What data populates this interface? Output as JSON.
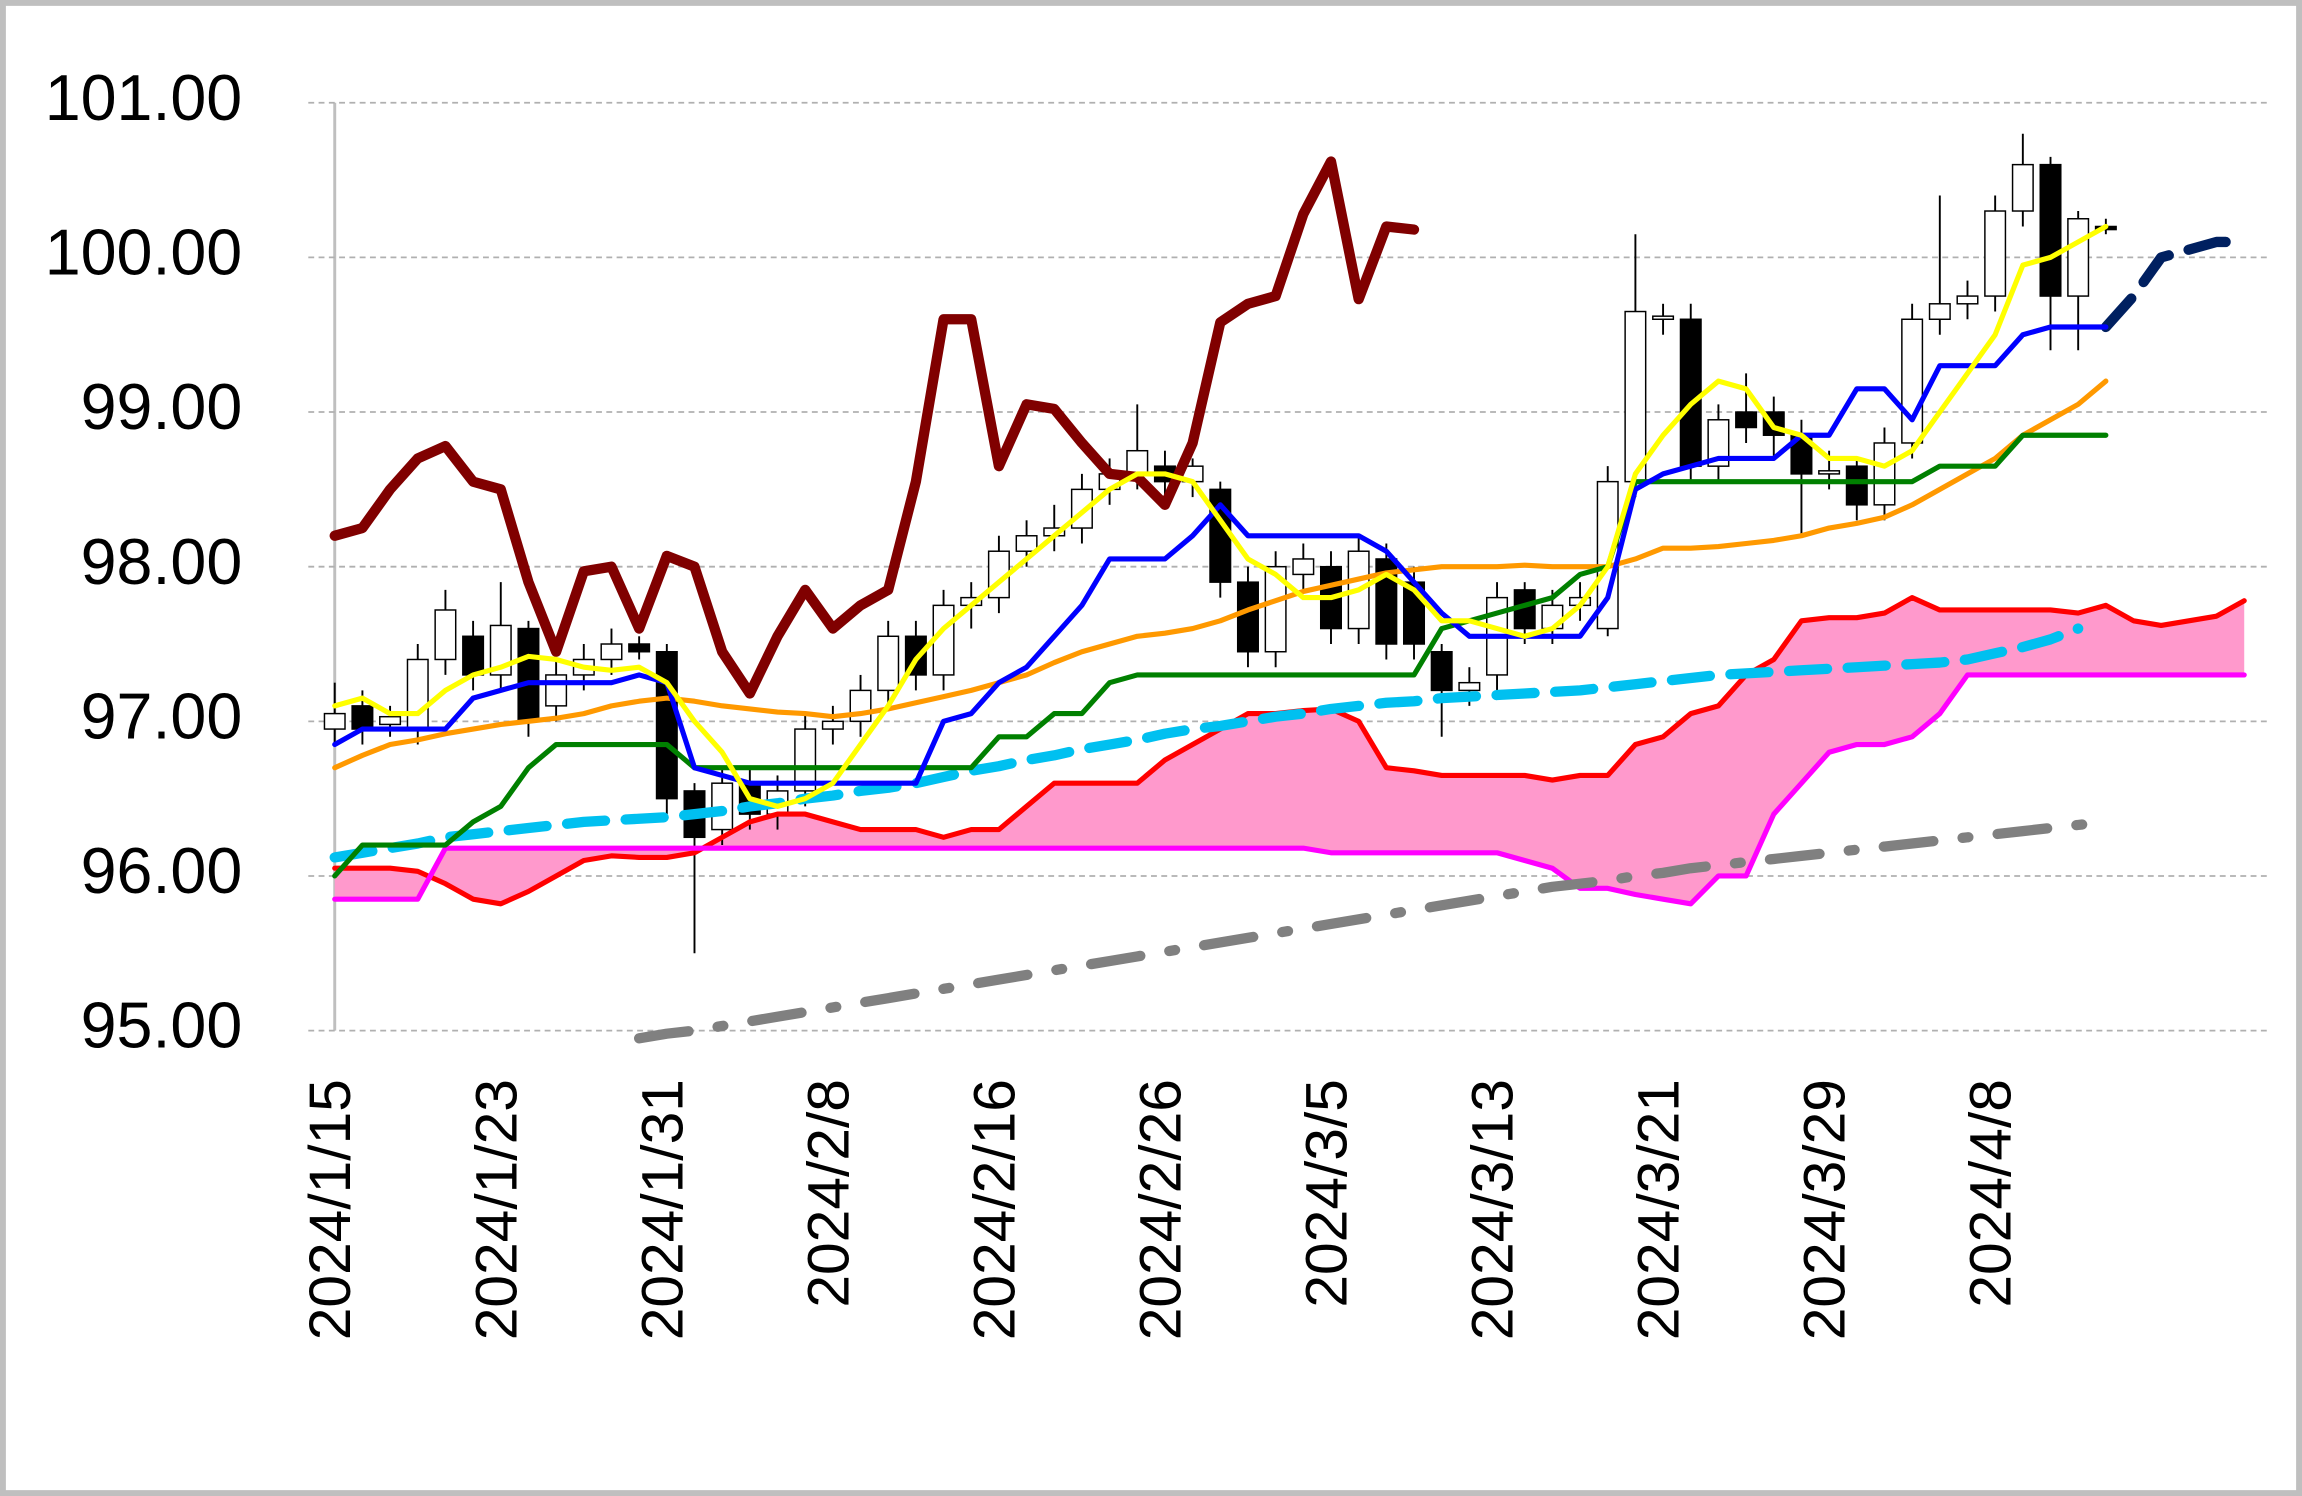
{
  "chart_data": {
    "type": "candlestick",
    "categories": [
      "2024/1/15",
      null,
      null,
      null,
      null,
      null,
      "2024/1/23",
      null,
      null,
      null,
      null,
      null,
      "2024/1/31",
      null,
      null,
      null,
      null,
      null,
      "2024/2/8",
      null,
      null,
      null,
      null,
      null,
      "2024/2/16",
      null,
      null,
      null,
      null,
      null,
      "2024/2/26",
      null,
      null,
      null,
      null,
      null,
      "2024/3/5",
      null,
      null,
      null,
      null,
      null,
      "2024/3/13",
      null,
      null,
      null,
      null,
      null,
      "2024/3/21",
      null,
      null,
      null,
      null,
      null,
      "2024/3/29",
      null,
      null,
      null,
      null,
      null,
      "2024/4/8",
      null,
      null,
      null,
      null,
      null,
      null,
      null,
      null,
      null
    ],
    "ylim": [
      95,
      101
    ],
    "yticks": [
      {
        "value": 95,
        "label": "95.00"
      },
      {
        "value": 96,
        "label": "96.00"
      },
      {
        "value": 97,
        "label": "97.00"
      },
      {
        "value": 98,
        "label": "98.00"
      },
      {
        "value": 99,
        "label": "99.00"
      },
      {
        "value": 100,
        "label": "100.00"
      },
      {
        "value": 101,
        "label": "101.00"
      }
    ],
    "grid": true,
    "up_color": "#ffffff",
    "down_color": "#000000",
    "cloud_color": "#ff99cc",
    "candles": {
      "open": [
        96.95,
        97.1,
        96.98,
        96.95,
        97.4,
        97.55,
        97.3,
        97.6,
        97.1,
        97.3,
        97.4,
        97.5,
        97.45,
        96.55,
        96.3,
        96.6,
        96.4,
        96.55,
        96.95,
        97.0,
        97.2,
        97.55,
        97.3,
        97.75,
        97.8,
        98.1,
        98.2,
        98.25,
        98.5,
        98.6,
        98.65,
        98.55,
        98.5,
        97.9,
        97.45,
        97.95,
        98.0,
        97.6,
        98.05,
        97.9,
        97.45,
        97.2,
        97.3,
        97.85,
        97.6,
        97.75,
        97.6,
        98.55,
        99.6,
        99.6,
        98.65,
        99.0,
        99.0,
        98.85,
        98.6,
        98.65,
        98.4,
        98.8,
        99.6,
        99.7,
        99.75,
        100.3,
        100.6,
        99.75,
        100.2
      ],
      "high": [
        97.25,
        97.2,
        97.1,
        97.5,
        97.85,
        97.65,
        97.9,
        97.65,
        97.4,
        97.5,
        97.6,
        97.55,
        97.5,
        96.6,
        96.7,
        96.7,
        96.65,
        97.05,
        97.1,
        97.3,
        97.65,
        97.65,
        97.85,
        97.9,
        98.2,
        98.3,
        98.4,
        98.6,
        98.7,
        99.05,
        98.75,
        98.7,
        98.55,
        98.0,
        98.1,
        98.15,
        98.1,
        98.2,
        98.15,
        98.0,
        97.5,
        97.35,
        97.9,
        97.9,
        97.85,
        97.9,
        98.65,
        100.15,
        99.7,
        99.7,
        99.05,
        99.25,
        99.1,
        98.95,
        98.75,
        98.7,
        98.9,
        99.7,
        100.4,
        99.85,
        100.4,
        100.8,
        100.65,
        100.3,
        100.25
      ],
      "low": [
        96.85,
        96.85,
        96.9,
        96.85,
        97.3,
        97.2,
        97.2,
        96.9,
        97.0,
        97.2,
        97.3,
        97.4,
        96.4,
        95.5,
        96.2,
        96.3,
        96.3,
        96.45,
        96.85,
        96.9,
        97.1,
        97.2,
        97.2,
        97.6,
        97.7,
        98.0,
        98.1,
        98.15,
        98.4,
        98.5,
        98.45,
        98.45,
        97.8,
        97.35,
        97.35,
        97.85,
        97.5,
        97.5,
        97.4,
        97.4,
        96.9,
        97.1,
        97.2,
        97.5,
        97.5,
        97.65,
        97.55,
        98.45,
        99.5,
        98.55,
        98.55,
        98.8,
        98.7,
        98.2,
        98.5,
        98.3,
        98.3,
        98.7,
        99.5,
        99.6,
        99.65,
        100.2,
        99.4,
        99.4,
        100.15
      ],
      "close": [
        97.05,
        96.95,
        97.03,
        97.4,
        97.72,
        97.3,
        97.62,
        97.0,
        97.3,
        97.4,
        97.5,
        97.45,
        96.5,
        96.25,
        96.6,
        96.4,
        96.55,
        96.95,
        97.0,
        97.2,
        97.55,
        97.3,
        97.75,
        97.8,
        98.1,
        98.2,
        98.25,
        98.5,
        98.6,
        98.75,
        98.55,
        98.65,
        97.9,
        97.45,
        98.0,
        98.05,
        97.6,
        98.1,
        97.5,
        97.5,
        97.2,
        97.25,
        97.8,
        97.6,
        97.75,
        97.8,
        98.55,
        99.65,
        99.62,
        98.65,
        98.95,
        98.9,
        98.85,
        98.6,
        98.62,
        98.4,
        98.8,
        99.6,
        99.7,
        99.75,
        100.3,
        100.6,
        99.75,
        100.25,
        100.18
      ]
    },
    "series": [
      {
        "color": "#ff0000",
        "style": "solid",
        "values": [
          96.05,
          96.05,
          96.05,
          96.03,
          95.95,
          95.85,
          95.82,
          95.9,
          96.0,
          96.1,
          96.13,
          96.12,
          96.12,
          96.15,
          96.25,
          96.35,
          96.4,
          96.4,
          96.35,
          96.3,
          96.3,
          96.3,
          96.25,
          96.3,
          96.3,
          96.45,
          96.6,
          96.6,
          96.6,
          96.6,
          96.75,
          96.85,
          96.95,
          97.05,
          97.05,
          97.07,
          97.08,
          97.0,
          96.7,
          96.68,
          96.65,
          96.65,
          96.65,
          96.65,
          96.62,
          96.65,
          96.65,
          96.85,
          96.9,
          97.05,
          97.1,
          97.3,
          97.4,
          97.65,
          97.67,
          97.67,
          97.7,
          97.8,
          97.72,
          97.72,
          97.72,
          97.72,
          97.72,
          97.7,
          97.75,
          97.65,
          97.62,
          97.65,
          97.68,
          97.78
        ]
      },
      {
        "color": "#ff00ff",
        "style": "solid",
        "values": [
          95.85,
          95.85,
          95.85,
          95.85,
          96.18,
          96.18,
          96.18,
          96.18,
          96.18,
          96.18,
          96.18,
          96.18,
          96.18,
          96.18,
          96.18,
          96.18,
          96.18,
          96.18,
          96.18,
          96.18,
          96.18,
          96.18,
          96.18,
          96.18,
          96.18,
          96.18,
          96.18,
          96.18,
          96.18,
          96.18,
          96.18,
          96.18,
          96.18,
          96.18,
          96.18,
          96.18,
          96.15,
          96.15,
          96.15,
          96.15,
          96.15,
          96.15,
          96.15,
          96.1,
          96.05,
          95.92,
          95.92,
          95.88,
          95.85,
          95.82,
          96.0,
          96.0,
          96.4,
          96.6,
          96.8,
          96.85,
          96.85,
          96.9,
          97.05,
          97.3,
          97.3,
          97.3,
          97.3,
          97.3,
          97.3,
          97.3,
          97.3,
          97.3,
          97.3,
          97.3
        ]
      },
      {
        "color": "#800000",
        "style": "thick",
        "values": [
          98.2,
          98.25,
          98.5,
          98.7,
          98.78,
          98.55,
          98.5,
          97.9,
          97.45,
          97.97,
          98.0,
          97.6,
          98.07,
          98.0,
          97.45,
          97.18,
          97.55,
          97.85,
          97.6,
          97.75,
          97.85,
          98.55,
          99.6,
          99.6,
          98.65,
          99.05,
          99.02,
          98.8,
          98.6,
          98.58,
          98.4,
          98.8,
          99.58,
          99.7,
          99.75,
          100.28,
          100.62,
          99.73,
          100.2,
          100.18,
          null,
          null,
          null,
          null,
          null,
          null,
          null,
          null,
          null,
          null,
          null,
          null,
          null,
          null,
          null,
          null,
          null,
          null,
          null,
          null,
          null,
          null,
          null,
          null,
          null,
          null,
          null,
          null,
          null,
          null
        ]
      },
      {
        "color": "#00c0f0",
        "style": "dashed",
        "values": [
          96.12,
          96.15,
          96.18,
          96.21,
          96.25,
          96.27,
          96.29,
          96.31,
          96.33,
          96.35,
          96.36,
          96.37,
          96.38,
          96.4,
          96.42,
          96.45,
          96.47,
          96.5,
          96.52,
          96.55,
          96.57,
          96.6,
          96.64,
          96.68,
          96.71,
          96.75,
          96.78,
          96.82,
          96.85,
          96.88,
          96.92,
          96.95,
          96.97,
          97.0,
          97.03,
          97.05,
          97.08,
          97.1,
          97.12,
          97.13,
          97.15,
          97.16,
          97.17,
          97.18,
          97.19,
          97.2,
          97.22,
          97.24,
          97.26,
          97.28,
          97.3,
          97.31,
          97.32,
          97.33,
          97.34,
          97.35,
          97.36,
          97.37,
          97.38,
          97.4,
          97.44,
          97.48,
          97.53,
          97.6,
          null,
          null,
          null,
          null,
          null,
          null
        ]
      },
      {
        "color": "#808080",
        "style": "dashdot",
        "values": [
          null,
          null,
          null,
          null,
          null,
          null,
          null,
          null,
          null,
          null,
          null,
          94.95,
          94.98,
          95.0,
          95.03,
          95.06,
          95.09,
          95.12,
          95.15,
          95.18,
          95.21,
          95.24,
          95.27,
          95.3,
          95.33,
          95.36,
          95.39,
          95.42,
          95.45,
          95.48,
          95.51,
          95.54,
          95.57,
          95.6,
          95.63,
          95.66,
          95.69,
          95.72,
          95.75,
          95.78,
          95.81,
          95.84,
          95.87,
          95.9,
          95.93,
          95.95,
          95.97,
          96.0,
          96.02,
          96.05,
          96.07,
          96.09,
          96.11,
          96.13,
          96.15,
          96.17,
          96.19,
          96.21,
          96.23,
          96.25,
          96.27,
          96.29,
          96.31,
          96.33,
          96.35,
          null,
          null,
          null,
          null,
          null
        ]
      },
      {
        "color": "#002060",
        "style": "dashed",
        "values": [
          null,
          null,
          null,
          null,
          null,
          null,
          null,
          null,
          null,
          null,
          null,
          null,
          null,
          null,
          null,
          null,
          null,
          null,
          null,
          null,
          null,
          null,
          null,
          null,
          null,
          null,
          null,
          null,
          null,
          null,
          null,
          null,
          null,
          null,
          null,
          null,
          null,
          null,
          null,
          null,
          null,
          null,
          null,
          null,
          null,
          null,
          null,
          null,
          null,
          null,
          null,
          null,
          null,
          null,
          null,
          null,
          null,
          null,
          null,
          null,
          null,
          null,
          null,
          null,
          99.55,
          99.75,
          100.0,
          100.05,
          100.1,
          100.1
        ]
      },
      {
        "color": "#ff9900",
        "style": "solid",
        "values": [
          96.7,
          96.78,
          96.85,
          96.88,
          96.92,
          96.95,
          96.98,
          97.0,
          97.02,
          97.05,
          97.1,
          97.13,
          97.15,
          97.13,
          97.1,
          97.08,
          97.06,
          97.05,
          97.03,
          97.05,
          97.08,
          97.12,
          97.16,
          97.2,
          97.25,
          97.3,
          97.38,
          97.45,
          97.5,
          97.55,
          97.57,
          97.6,
          97.65,
          97.72,
          97.78,
          97.84,
          97.88,
          97.92,
          97.96,
          97.98,
          98.0,
          98.0,
          98.0,
          98.01,
          98.0,
          98.0,
          98.0,
          98.05,
          98.12,
          98.12,
          98.13,
          98.15,
          98.17,
          98.2,
          98.25,
          98.28,
          98.32,
          98.4,
          98.5,
          98.6,
          98.7,
          98.85,
          98.95,
          99.05,
          99.2,
          null,
          null,
          null,
          null,
          null
        ]
      },
      {
        "color": "#008000",
        "style": "solid",
        "values": [
          96.0,
          96.2,
          96.2,
          96.2,
          96.2,
          96.35,
          96.45,
          96.7,
          96.85,
          96.85,
          96.85,
          96.85,
          96.85,
          96.7,
          96.7,
          96.7,
          96.7,
          96.7,
          96.7,
          96.7,
          96.7,
          96.7,
          96.7,
          96.7,
          96.9,
          96.9,
          97.05,
          97.05,
          97.25,
          97.3,
          97.3,
          97.3,
          97.3,
          97.3,
          97.3,
          97.3,
          97.3,
          97.3,
          97.3,
          97.3,
          97.6,
          97.65,
          97.7,
          97.75,
          97.8,
          97.95,
          98.0,
          98.55,
          98.55,
          98.55,
          98.55,
          98.55,
          98.55,
          98.55,
          98.55,
          98.55,
          98.55,
          98.55,
          98.65,
          98.65,
          98.65,
          98.85,
          98.85,
          98.85,
          98.85,
          null,
          null,
          null,
          null,
          null
        ]
      },
      {
        "color": "#0000ff",
        "style": "solid",
        "values": [
          96.85,
          96.95,
          96.95,
          96.95,
          96.95,
          97.15,
          97.2,
          97.25,
          97.25,
          97.25,
          97.25,
          97.3,
          97.25,
          96.7,
          96.65,
          96.6,
          96.6,
          96.6,
          96.6,
          96.6,
          96.6,
          96.6,
          97.0,
          97.05,
          97.25,
          97.35,
          97.55,
          97.75,
          98.05,
          98.05,
          98.05,
          98.2,
          98.4,
          98.2,
          98.2,
          98.2,
          98.2,
          98.2,
          98.1,
          97.9,
          97.7,
          97.55,
          97.55,
          97.55,
          97.55,
          97.55,
          97.8,
          98.5,
          98.6,
          98.65,
          98.7,
          98.7,
          98.7,
          98.85,
          98.85,
          99.15,
          99.15,
          98.95,
          99.3,
          99.3,
          99.3,
          99.5,
          99.55,
          99.55,
          99.55,
          null,
          null,
          null,
          null,
          null
        ]
      },
      {
        "color": "#ffff00",
        "style": "solid",
        "values": [
          97.1,
          97.15,
          97.05,
          97.05,
          97.2,
          97.3,
          97.35,
          97.42,
          97.4,
          97.35,
          97.33,
          97.35,
          97.25,
          97.0,
          96.8,
          96.5,
          96.45,
          96.5,
          96.6,
          96.85,
          97.1,
          97.4,
          97.6,
          97.75,
          97.9,
          98.05,
          98.2,
          98.35,
          98.5,
          98.6,
          98.6,
          98.55,
          98.3,
          98.05,
          97.95,
          97.8,
          97.8,
          97.85,
          97.95,
          97.85,
          97.65,
          97.65,
          97.6,
          97.55,
          97.6,
          97.75,
          98.0,
          98.6,
          98.85,
          99.05,
          99.2,
          99.15,
          98.9,
          98.85,
          98.7,
          98.7,
          98.65,
          98.75,
          99.0,
          99.25,
          99.5,
          99.95,
          100.0,
          100.1,
          100.2,
          null,
          null,
          null,
          null,
          null
        ]
      }
    ]
  }
}
